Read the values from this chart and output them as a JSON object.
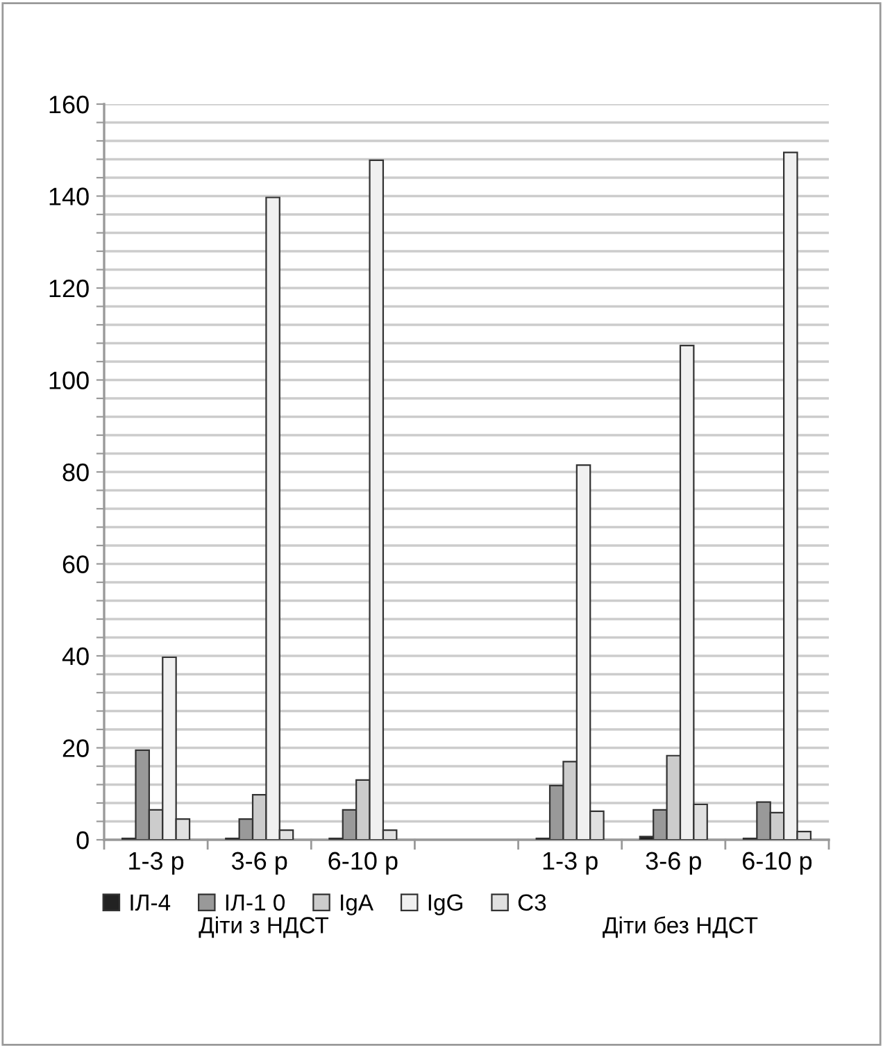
{
  "chart_data": {
    "type": "bar",
    "categories": [
      "1-3 р",
      "3-6 р",
      "6-10 р",
      null,
      "1-3 р",
      "3-6 р",
      "6-10 р"
    ],
    "series": [
      {
        "name": "ІЛ-4",
        "color": "#222222",
        "values": [
          0.3,
          0.3,
          0.3,
          null,
          0.3,
          0.7,
          0.3
        ]
      },
      {
        "name": "ІЛ-1 0",
        "color": "#999999",
        "values": [
          19.5,
          4.5,
          6.5,
          null,
          11.8,
          6.5,
          8.2
        ]
      },
      {
        "name": "IgA",
        "color": "#cccccc",
        "values": [
          6.5,
          9.8,
          13,
          null,
          17,
          18.3,
          5.9
        ]
      },
      {
        "name": "IgG",
        "color": "#f0f0f0",
        "values": [
          39.7,
          139.7,
          147.8,
          null,
          81.5,
          107.5,
          149.5
        ]
      },
      {
        "name": "C3",
        "color": "#e0e0e0",
        "values": [
          4.5,
          2.1,
          2.1,
          null,
          6.2,
          7.7,
          1.8
        ]
      }
    ],
    "ylim": [
      0,
      160
    ],
    "yticks": [
      0,
      {
        "value": 4,
        "label": null
      },
      {
        "value": 8,
        "label": null
      },
      {
        "value": 12,
        "label": null
      },
      {
        "value": 16,
        "label": null
      },
      20,
      {
        "value": 24,
        "label": null
      },
      {
        "value": 28,
        "label": null
      },
      {
        "value": 32,
        "label": null
      },
      {
        "value": 36,
        "label": null
      },
      40,
      {
        "value": 44,
        "label": null
      },
      {
        "value": 48,
        "label": null
      },
      {
        "value": 52,
        "label": null
      },
      {
        "value": 56,
        "label": null
      },
      60,
      {
        "value": 64,
        "label": null
      },
      {
        "value": 68,
        "label": null
      },
      {
        "value": 72,
        "label": null
      },
      {
        "value": 76,
        "label": null
      },
      80,
      {
        "value": 84,
        "label": null
      },
      {
        "value": 88,
        "label": null
      },
      {
        "value": 92,
        "label": null
      },
      {
        "value": 96,
        "label": null
      },
      100,
      {
        "value": 104,
        "label": null
      },
      {
        "value": 108,
        "label": null
      },
      {
        "value": 112,
        "label": null
      },
      {
        "value": 116,
        "label": null
      },
      120,
      {
        "value": 124,
        "label": null
      },
      {
        "value": 128,
        "label": null
      },
      {
        "value": 132,
        "label": null
      },
      {
        "value": 136,
        "label": null
      },
      140,
      {
        "value": 144,
        "label": null
      },
      {
        "value": 148,
        "label": null
      },
      {
        "value": 152,
        "label": null
      },
      {
        "value": 156,
        "label": null
      },
      160
    ],
    "grid": "y",
    "legend": "bottom",
    "annotations": [
      "Діти з НДСТ",
      "Діти без НДСТ"
    ]
  }
}
